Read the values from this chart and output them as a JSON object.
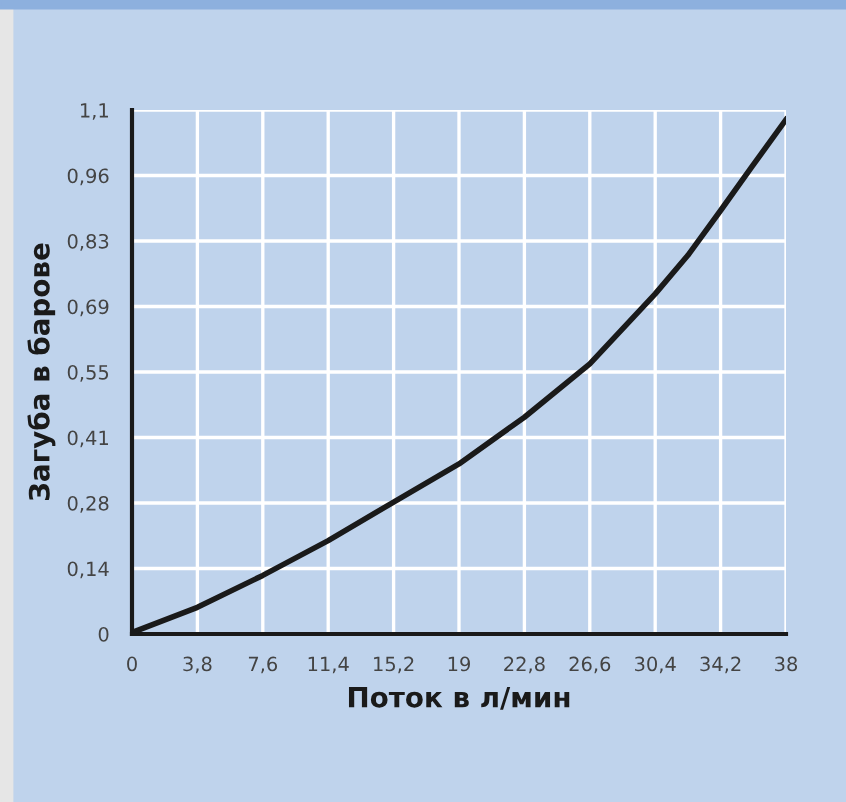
{
  "chart_data": {
    "type": "line",
    "xlabel": "Поток в л/мин",
    "ylabel": "Загуба в барове",
    "x": [
      0,
      3.8,
      7.6,
      11.4,
      15.2,
      19,
      22.8,
      26.6,
      30.4,
      32.3,
      34.2,
      36,
      38
    ],
    "series": [
      {
        "color": "#1a1a1a",
        "values": [
          0.003,
          0.056,
          0.123,
          0.196,
          0.277,
          0.357,
          0.455,
          0.567,
          0.714,
          0.795,
          0.889,
          0.98,
          1.08
        ]
      }
    ],
    "xlim": [
      0,
      38
    ],
    "ylim": [
      0,
      1.1
    ],
    "xticks": [
      0,
      {
        "value": 3.8,
        "label": "3,8"
      },
      {
        "value": 7.6,
        "label": "7,6"
      },
      {
        "value": 11.4,
        "label": "11,4"
      },
      {
        "value": 15.2,
        "label": "15,2"
      },
      19,
      {
        "value": 22.8,
        "label": "22,8"
      },
      {
        "value": 26.6,
        "label": "26,6"
      },
      {
        "value": 30.4,
        "label": "30,4"
      },
      {
        "value": 34.2,
        "label": "34,2"
      },
      38
    ],
    "yticks": [
      0,
      {
        "value": 0.1375,
        "label": "0,14"
      },
      {
        "value": 0.275,
        "label": "0,28"
      },
      {
        "value": 0.4125,
        "label": "0,41"
      },
      {
        "value": 0.55,
        "label": "0,55"
      },
      {
        "value": 0.6875,
        "label": "0,69"
      },
      {
        "value": 0.825,
        "label": "0,83"
      },
      {
        "value": 0.9625,
        "label": "0,96"
      },
      {
        "value": 1.1,
        "label": "1,1"
      }
    ],
    "grid": true,
    "marker": "none",
    "line_style": "solid"
  }
}
